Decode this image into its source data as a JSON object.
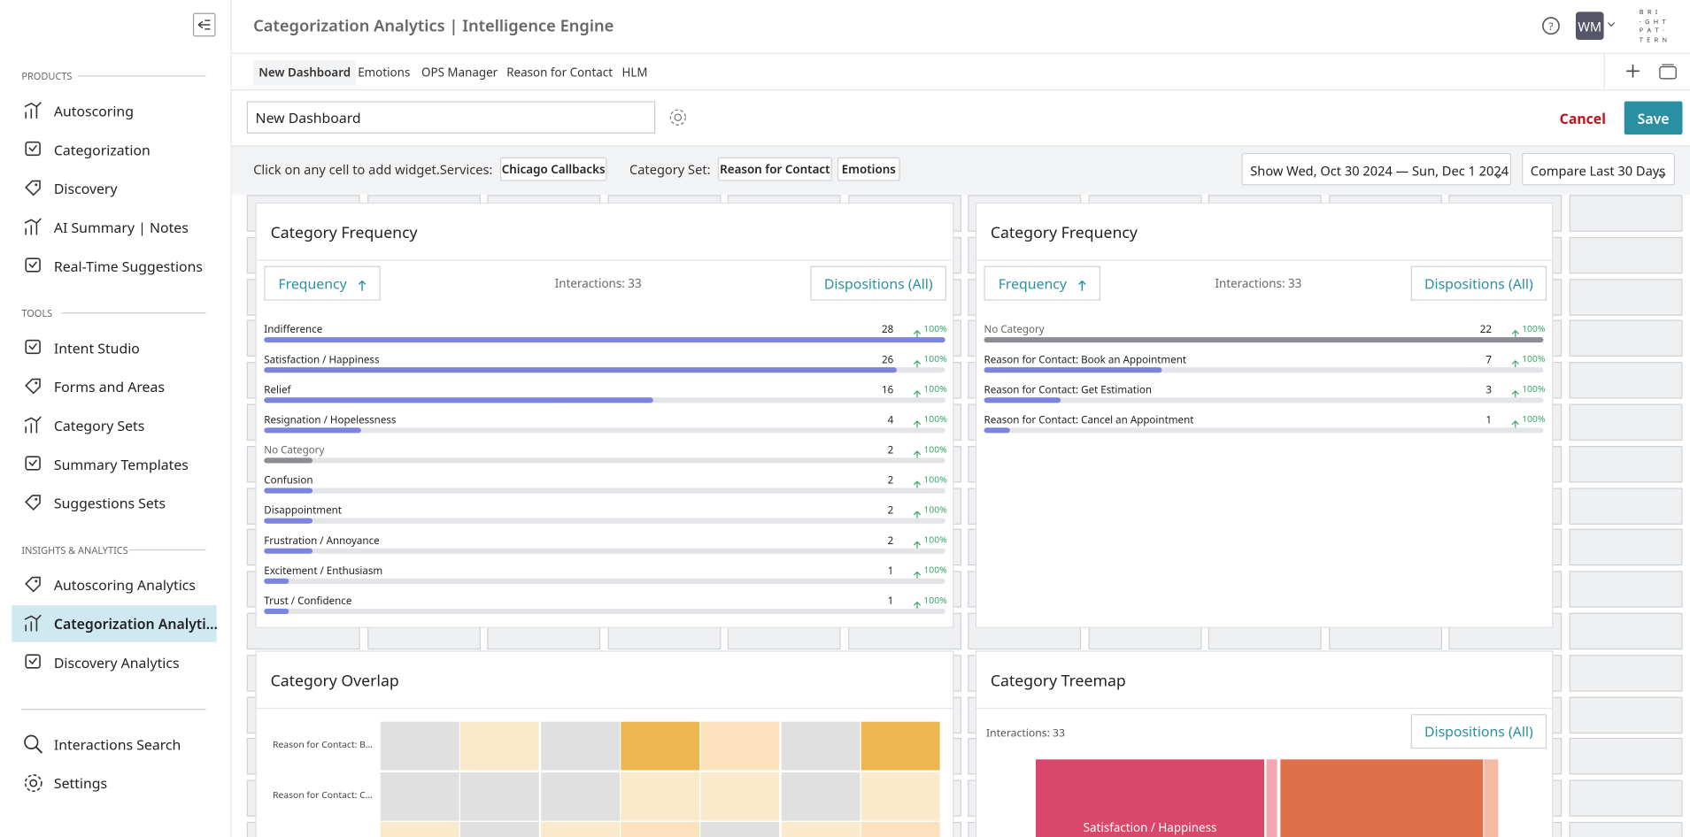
{
  "header": {
    "title": "Categorization Analytics | Intelligence Engine",
    "avatar": "WM",
    "logo": [
      "B R I",
      "· G H T",
      "P A T ·",
      "T E R N"
    ]
  },
  "sidebar": {
    "sections": [
      {
        "title": "PRODUCTS",
        "items": [
          "Autoscoring",
          "Categorization",
          "Discovery",
          "AI Summary | Notes",
          "Real-Time Suggestions"
        ]
      },
      {
        "title": "TOOLS",
        "items": [
          "Intent Studio",
          "Forms and Areas",
          "Category Sets",
          "Summary Templates",
          "Suggestions Sets"
        ]
      },
      {
        "title": "INSIGHTS & ANALYTICS",
        "items": [
          "Autoscoring Analytics",
          "Categorization Analyti...",
          "Discovery Analytics"
        ]
      }
    ],
    "bottom": [
      "Interactions Search",
      "Settings"
    ]
  },
  "tabs": [
    "New Dashboard",
    "Emotions",
    "OPS Manager",
    "Reason for Contact",
    "HLM"
  ],
  "toolbar": {
    "dashboard_name": "New Dashboard",
    "cancel": "Cancel",
    "save": "Save"
  },
  "filters": {
    "hint": "Click on any cell to add widget.",
    "services_label": "Services:",
    "services": [
      "Chicago Callbacks"
    ],
    "category_set_label": "Category Set:",
    "category_sets": [
      "Reason for Contact",
      "Emotions"
    ],
    "date_range": "Show Wed, Oct 30 2024 — Sun, Dec 1 2024",
    "compare": "Compare Last 30 Days"
  },
  "widgets": [
    {
      "title": "Category Frequency",
      "sort": "Frequency",
      "interactions": "Interactions: 33",
      "dispositions": "Dispositions (All)",
      "rows": [
        {
          "label": "Indifference",
          "count": 28,
          "change": "100%"
        },
        {
          "label": "Satisfaction / Happiness",
          "count": 26,
          "change": "100%"
        },
        {
          "label": "Relief",
          "count": 16,
          "change": "100%"
        },
        {
          "label": "Resignation / Hopelessness",
          "count": 4,
          "change": "100%"
        },
        {
          "label": "No Category",
          "count": 2,
          "change": "100%"
        },
        {
          "label": "Confusion",
          "count": 2,
          "change": "100%"
        },
        {
          "label": "Disappointment",
          "count": 2,
          "change": "100%"
        },
        {
          "label": "Frustration / Annoyance",
          "count": 2,
          "change": "100%"
        },
        {
          "label": "Excitement / Enthusiasm",
          "count": 1,
          "change": "100%"
        },
        {
          "label": "Trust / Confidence",
          "count": 1,
          "change": "100%"
        }
      ]
    },
    {
      "title": "Category Frequency",
      "sort": "Frequency",
      "interactions": "Interactions: 33",
      "dispositions": "Dispositions (All)",
      "rows": [
        {
          "label": "No Category",
          "count": 22,
          "change": "100%"
        },
        {
          "label": "Reason for Contact: Book an Appointment",
          "count": 7,
          "change": "100%"
        },
        {
          "label": "Reason for Contact: Get Estimation",
          "count": 3,
          "change": "100%"
        },
        {
          "label": "Reason for Contact: Cancel an Appointment",
          "count": 1,
          "change": "100%"
        }
      ]
    },
    {
      "title": "Category Overlap",
      "rows": [
        {
          "label": "Reason for Contact: B...",
          "colors": [
            "#e0e0e0",
            "#fbe9cc",
            "#e0e0e0",
            "#ecb650",
            "#fbe2bd",
            "#e0e0e0",
            "#ecb650"
          ]
        },
        {
          "label": "Reason for Contact: C...",
          "colors": [
            "#e0e0e0",
            "#e0e0e0",
            "#e0e0e0",
            "#fbe9cc",
            "#fbe9cc",
            "#e0e0e0",
            "#fbe9cc"
          ]
        },
        {
          "label": null,
          "colors": [
            "#fbe9cc",
            "#e0e0e0",
            "#fbe9cc",
            "#fbe2bd",
            "#e0e0e0",
            "#fbe9cc",
            "#fbe2bd"
          ]
        }
      ]
    },
    {
      "title": "Category Treemap",
      "interactions": "Interactions: 33",
      "dispositions": "Dispositions (All)",
      "tiles": [
        {
          "label": "Satisfaction / Happiness",
          "color": "#d9486a"
        },
        {
          "label": null,
          "color": "#f2a7b3"
        },
        {
          "label": null,
          "color": "#e0704a"
        },
        {
          "label": null,
          "color": "#f6b9a3"
        }
      ]
    }
  ]
}
